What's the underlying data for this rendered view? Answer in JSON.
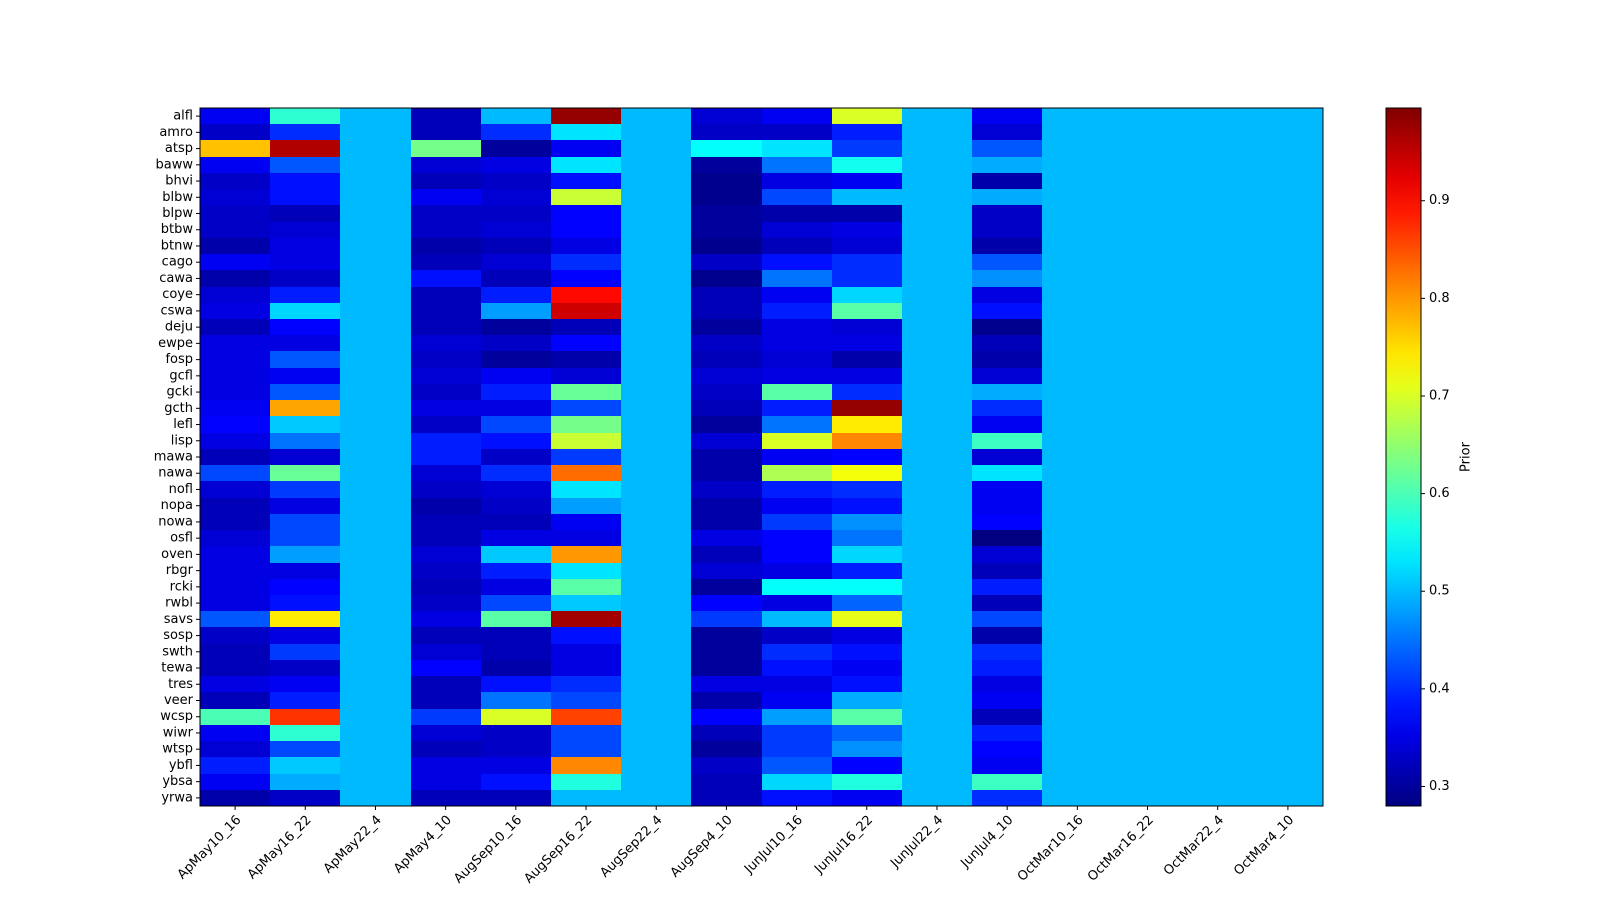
{
  "chart_data": {
    "type": "heatmap",
    "title": "",
    "xlabel": "",
    "ylabel": "",
    "colormap": "jet",
    "x_categories": [
      "ApMay10_16",
      "ApMay16_22",
      "ApMay22_4",
      "ApMay4_10",
      "AugSep10_16",
      "AugSep16_22",
      "AugSep22_4",
      "AugSep4_10",
      "JunJul10_16",
      "JunJul16_22",
      "JunJul22_4",
      "JunJul4_10",
      "OctMar10_16",
      "OctMar16_22",
      "OctMar22_4",
      "OctMar4_10"
    ],
    "y_categories": [
      "alfl",
      "amro",
      "atsp",
      "baww",
      "bhvi",
      "blbw",
      "blpw",
      "btbw",
      "btnw",
      "cago",
      "cawa",
      "coye",
      "cswa",
      "deju",
      "ewpe",
      "fosp",
      "gcfl",
      "gcki",
      "gcth",
      "lefl",
      "lisp",
      "mawa",
      "nawa",
      "nofl",
      "nopa",
      "nowa",
      "osfl",
      "oven",
      "rbgr",
      "rcki",
      "rwbl",
      "savs",
      "sosp",
      "swth",
      "tewa",
      "tres",
      "veer",
      "wcsp",
      "wiwr",
      "wtsp",
      "ybfl",
      "ybsa",
      "yrwa"
    ],
    "values": [
      [
        0.36,
        0.58,
        0.5,
        0.32,
        0.5,
        0.98,
        0.5,
        0.34,
        0.36,
        0.7,
        0.5,
        0.36,
        0.5,
        0.5,
        0.5,
        0.5
      ],
      [
        0.33,
        0.4,
        0.5,
        0.32,
        0.4,
        0.53,
        0.5,
        0.33,
        0.33,
        0.39,
        0.5,
        0.34,
        0.5,
        0.5,
        0.5,
        0.5
      ],
      [
        0.77,
        0.96,
        0.5,
        0.63,
        0.3,
        0.36,
        0.5,
        0.55,
        0.53,
        0.41,
        0.5,
        0.43,
        0.5,
        0.5,
        0.5,
        0.5
      ],
      [
        0.36,
        0.43,
        0.5,
        0.34,
        0.35,
        0.53,
        0.5,
        0.3,
        0.45,
        0.56,
        0.5,
        0.49,
        0.5,
        0.5,
        0.5,
        0.5
      ],
      [
        0.33,
        0.38,
        0.5,
        0.32,
        0.33,
        0.38,
        0.5,
        0.29,
        0.35,
        0.36,
        0.5,
        0.31,
        0.5,
        0.5,
        0.5,
        0.5
      ],
      [
        0.34,
        0.38,
        0.5,
        0.36,
        0.34,
        0.69,
        0.5,
        0.29,
        0.42,
        0.5,
        0.5,
        0.49,
        0.5,
        0.5,
        0.5,
        0.5
      ],
      [
        0.33,
        0.32,
        0.5,
        0.33,
        0.33,
        0.37,
        0.5,
        0.3,
        0.31,
        0.31,
        0.5,
        0.33,
        0.5,
        0.5,
        0.5,
        0.5
      ],
      [
        0.33,
        0.34,
        0.5,
        0.33,
        0.34,
        0.37,
        0.5,
        0.3,
        0.34,
        0.35,
        0.5,
        0.33,
        0.5,
        0.5,
        0.5,
        0.5
      ],
      [
        0.31,
        0.35,
        0.5,
        0.31,
        0.32,
        0.35,
        0.5,
        0.29,
        0.32,
        0.34,
        0.5,
        0.31,
        0.5,
        0.5,
        0.5,
        0.5
      ],
      [
        0.36,
        0.35,
        0.5,
        0.32,
        0.34,
        0.4,
        0.5,
        0.33,
        0.38,
        0.4,
        0.5,
        0.43,
        0.5,
        0.5,
        0.5,
        0.5
      ],
      [
        0.31,
        0.33,
        0.5,
        0.38,
        0.32,
        0.37,
        0.5,
        0.29,
        0.45,
        0.4,
        0.5,
        0.47,
        0.5,
        0.5,
        0.5,
        0.5
      ],
      [
        0.34,
        0.39,
        0.5,
        0.32,
        0.39,
        0.9,
        0.5,
        0.32,
        0.36,
        0.52,
        0.5,
        0.35,
        0.5,
        0.5,
        0.5,
        0.5
      ],
      [
        0.35,
        0.52,
        0.5,
        0.32,
        0.48,
        0.94,
        0.5,
        0.32,
        0.39,
        0.61,
        0.5,
        0.38,
        0.5,
        0.5,
        0.5,
        0.5
      ],
      [
        0.32,
        0.37,
        0.5,
        0.32,
        0.3,
        0.32,
        0.5,
        0.3,
        0.35,
        0.34,
        0.5,
        0.29,
        0.5,
        0.5,
        0.5,
        0.5
      ],
      [
        0.35,
        0.35,
        0.5,
        0.34,
        0.33,
        0.37,
        0.5,
        0.33,
        0.35,
        0.35,
        0.5,
        0.32,
        0.5,
        0.5,
        0.5,
        0.5
      ],
      [
        0.35,
        0.43,
        0.5,
        0.33,
        0.3,
        0.31,
        0.5,
        0.32,
        0.34,
        0.31,
        0.5,
        0.31,
        0.5,
        0.5,
        0.5,
        0.5
      ],
      [
        0.35,
        0.36,
        0.5,
        0.34,
        0.36,
        0.34,
        0.5,
        0.34,
        0.35,
        0.35,
        0.5,
        0.34,
        0.5,
        0.5,
        0.5,
        0.5
      ],
      [
        0.35,
        0.43,
        0.5,
        0.33,
        0.39,
        0.62,
        0.5,
        0.33,
        0.61,
        0.4,
        0.5,
        0.49,
        0.5,
        0.5,
        0.5,
        0.5
      ],
      [
        0.36,
        0.79,
        0.5,
        0.35,
        0.35,
        0.42,
        0.5,
        0.32,
        0.39,
        0.98,
        0.5,
        0.4,
        0.5,
        0.5,
        0.5,
        0.5
      ],
      [
        0.37,
        0.51,
        0.5,
        0.33,
        0.42,
        0.63,
        0.5,
        0.3,
        0.45,
        0.74,
        0.5,
        0.36,
        0.5,
        0.5,
        0.5,
        0.5
      ],
      [
        0.35,
        0.45,
        0.5,
        0.39,
        0.38,
        0.69,
        0.5,
        0.34,
        0.7,
        0.81,
        0.5,
        0.59,
        0.5,
        0.5,
        0.5,
        0.5
      ],
      [
        0.32,
        0.34,
        0.5,
        0.39,
        0.33,
        0.41,
        0.5,
        0.31,
        0.36,
        0.37,
        0.5,
        0.34,
        0.5,
        0.5,
        0.5,
        0.5
      ],
      [
        0.42,
        0.62,
        0.5,
        0.34,
        0.4,
        0.83,
        0.5,
        0.31,
        0.67,
        0.72,
        0.5,
        0.53,
        0.5,
        0.5,
        0.5,
        0.5
      ],
      [
        0.34,
        0.41,
        0.5,
        0.33,
        0.34,
        0.53,
        0.5,
        0.33,
        0.39,
        0.4,
        0.5,
        0.36,
        0.5,
        0.5,
        0.5,
        0.5
      ],
      [
        0.32,
        0.35,
        0.5,
        0.31,
        0.33,
        0.48,
        0.5,
        0.31,
        0.36,
        0.38,
        0.5,
        0.36,
        0.5,
        0.5,
        0.5,
        0.5
      ],
      [
        0.32,
        0.42,
        0.5,
        0.32,
        0.32,
        0.36,
        0.5,
        0.31,
        0.41,
        0.47,
        0.5,
        0.37,
        0.5,
        0.5,
        0.5,
        0.5
      ],
      [
        0.34,
        0.42,
        0.5,
        0.32,
        0.35,
        0.35,
        0.5,
        0.35,
        0.37,
        0.45,
        0.5,
        0.28,
        0.5,
        0.5,
        0.5,
        0.5
      ],
      [
        0.35,
        0.48,
        0.5,
        0.34,
        0.51,
        0.8,
        0.5,
        0.32,
        0.37,
        0.52,
        0.5,
        0.34,
        0.5,
        0.5,
        0.5,
        0.5
      ],
      [
        0.35,
        0.35,
        0.5,
        0.33,
        0.39,
        0.53,
        0.5,
        0.34,
        0.35,
        0.39,
        0.5,
        0.32,
        0.5,
        0.5,
        0.5,
        0.5
      ],
      [
        0.35,
        0.37,
        0.5,
        0.32,
        0.35,
        0.61,
        0.5,
        0.3,
        0.55,
        0.55,
        0.5,
        0.39,
        0.5,
        0.5,
        0.5,
        0.5
      ],
      [
        0.35,
        0.38,
        0.5,
        0.33,
        0.42,
        0.51,
        0.5,
        0.37,
        0.35,
        0.44,
        0.5,
        0.32,
        0.5,
        0.5,
        0.5,
        0.5
      ],
      [
        0.43,
        0.74,
        0.5,
        0.35,
        0.61,
        0.97,
        0.5,
        0.41,
        0.5,
        0.71,
        0.5,
        0.42,
        0.5,
        0.5,
        0.5,
        0.5
      ],
      [
        0.33,
        0.35,
        0.5,
        0.32,
        0.32,
        0.38,
        0.5,
        0.3,
        0.33,
        0.35,
        0.5,
        0.31,
        0.5,
        0.5,
        0.5,
        0.5
      ],
      [
        0.32,
        0.41,
        0.5,
        0.34,
        0.32,
        0.35,
        0.5,
        0.3,
        0.4,
        0.38,
        0.5,
        0.4,
        0.5,
        0.5,
        0.5,
        0.5
      ],
      [
        0.32,
        0.33,
        0.5,
        0.37,
        0.31,
        0.35,
        0.5,
        0.3,
        0.38,
        0.36,
        0.5,
        0.39,
        0.5,
        0.5,
        0.5,
        0.5
      ],
      [
        0.35,
        0.36,
        0.5,
        0.32,
        0.38,
        0.4,
        0.5,
        0.35,
        0.35,
        0.38,
        0.5,
        0.35,
        0.5,
        0.5,
        0.5,
        0.5
      ],
      [
        0.32,
        0.39,
        0.5,
        0.32,
        0.45,
        0.42,
        0.5,
        0.31,
        0.36,
        0.49,
        0.5,
        0.36,
        0.5,
        0.5,
        0.5,
        0.5
      ],
      [
        0.6,
        0.87,
        0.5,
        0.41,
        0.7,
        0.86,
        0.5,
        0.37,
        0.48,
        0.61,
        0.5,
        0.32,
        0.5,
        0.5,
        0.5,
        0.5
      ],
      [
        0.36,
        0.58,
        0.5,
        0.34,
        0.33,
        0.42,
        0.5,
        0.32,
        0.41,
        0.44,
        0.5,
        0.39,
        0.5,
        0.5,
        0.5,
        0.5
      ],
      [
        0.34,
        0.42,
        0.5,
        0.32,
        0.33,
        0.42,
        0.5,
        0.3,
        0.41,
        0.47,
        0.5,
        0.37,
        0.5,
        0.5,
        0.5,
        0.5
      ],
      [
        0.39,
        0.51,
        0.5,
        0.35,
        0.35,
        0.81,
        0.5,
        0.33,
        0.43,
        0.37,
        0.5,
        0.36,
        0.5,
        0.5,
        0.5,
        0.5
      ],
      [
        0.36,
        0.49,
        0.5,
        0.35,
        0.38,
        0.57,
        0.5,
        0.32,
        0.52,
        0.57,
        0.5,
        0.59,
        0.5,
        0.5,
        0.5,
        0.5
      ],
      [
        0.31,
        0.33,
        0.5,
        0.32,
        0.32,
        0.5,
        0.5,
        0.32,
        0.38,
        0.36,
        0.5,
        0.4,
        0.5,
        0.5,
        0.5,
        0.5
      ]
    ],
    "vmin": 0.28,
    "vmax": 0.995,
    "colorbar": {
      "label": "Prior",
      "ticks": [
        0.3,
        0.4,
        0.5,
        0.6,
        0.7,
        0.8,
        0.9
      ],
      "tick_labels": [
        "0.3",
        "0.4",
        "0.5",
        "0.6",
        "0.7",
        "0.8",
        "0.9"
      ]
    }
  }
}
